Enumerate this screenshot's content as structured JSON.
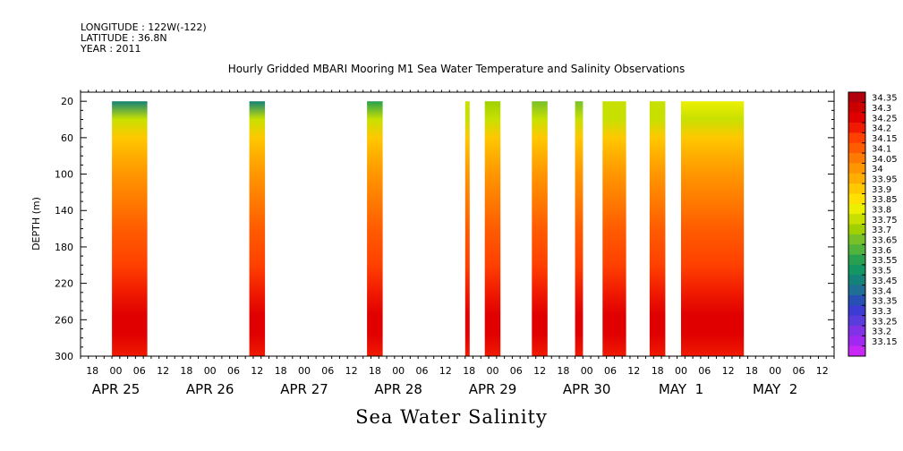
{
  "meta": {
    "longitude": "LONGITUDE : 122W(-122)",
    "latitude": "LATITUDE : 36.8N",
    "year": "YEAR : 2011"
  },
  "chart_data": {
    "type": "heatmap",
    "title": "Hourly Gridded MBARI Mooring M1 Sea Water Temperature and Salinity Observations",
    "subtitle": "Sea Water Salinity",
    "ylabel": "DEPTH (m)",
    "xlabel": "",
    "x_range": [
      "2011-04-24T15:00",
      "2011-05-02T15:00"
    ],
    "ylim": [
      300,
      10
    ],
    "y_axis_inverted": true,
    "y_ticks": [
      20,
      60,
      100,
      140,
      180,
      220,
      260,
      300
    ],
    "x_hour_ticks": [
      "18",
      "00",
      "06",
      "12",
      "18",
      "00",
      "06",
      "12",
      "18",
      "00",
      "06",
      "12",
      "18",
      "00",
      "06",
      "12",
      "18",
      "00",
      "06",
      "12",
      "18",
      "00",
      "06",
      "12",
      "18",
      "00",
      "06",
      "12",
      "18",
      "00",
      "06",
      "12"
    ],
    "x_day_labels": [
      {
        "label": "APR 25",
        "date": "2011-04-25"
      },
      {
        "label": "APR 26",
        "date": "2011-04-26"
      },
      {
        "label": "APR 27",
        "date": "2011-04-27"
      },
      {
        "label": "APR 28",
        "date": "2011-04-28"
      },
      {
        "label": "APR 29",
        "date": "2011-04-29"
      },
      {
        "label": "APR 30",
        "date": "2011-04-30"
      },
      {
        "label": "MAY  1",
        "date": "2011-05-01"
      },
      {
        "label": "MAY  2",
        "date": "2011-05-02"
      }
    ],
    "data_depth_range": [
      20,
      300
    ],
    "data_segments": [
      {
        "start": "2011-04-24T23:00",
        "end": "2011-04-25T08:00",
        "surface_salinity": 33.52
      },
      {
        "start": "2011-04-26T10:00",
        "end": "2011-04-26T14:00",
        "surface_salinity": 33.5
      },
      {
        "start": "2011-04-27T16:00",
        "end": "2011-04-27T20:00",
        "surface_salinity": 33.62
      },
      {
        "start": "2011-04-28T17:00",
        "end": "2011-04-28T18:00",
        "surface_salinity": 33.82
      },
      {
        "start": "2011-04-28T22:00",
        "end": "2011-04-29T02:00",
        "surface_salinity": 33.75
      },
      {
        "start": "2011-04-29T10:00",
        "end": "2011-04-29T14:00",
        "surface_salinity": 33.7
      },
      {
        "start": "2011-04-29T21:00",
        "end": "2011-04-29T23:00",
        "surface_salinity": 33.7
      },
      {
        "start": "2011-04-30T04:00",
        "end": "2011-04-30T10:00",
        "surface_salinity": 33.8
      },
      {
        "start": "2011-04-30T16:00",
        "end": "2011-04-30T20:00",
        "surface_salinity": 33.82
      },
      {
        "start": "2011-05-01T00:00",
        "end": "2011-05-01T16:00",
        "surface_salinity": 33.85
      }
    ],
    "depth_profile": [
      {
        "depth": 20,
        "salinity": 33.55
      },
      {
        "depth": 40,
        "salinity": 33.78
      },
      {
        "depth": 60,
        "salinity": 33.92
      },
      {
        "depth": 80,
        "salinity": 34.0
      },
      {
        "depth": 100,
        "salinity": 34.04
      },
      {
        "depth": 130,
        "salinity": 34.08
      },
      {
        "depth": 160,
        "salinity": 34.12
      },
      {
        "depth": 200,
        "salinity": 34.17
      },
      {
        "depth": 230,
        "salinity": 34.23
      },
      {
        "depth": 255,
        "salinity": 34.3
      },
      {
        "depth": 275,
        "salinity": 34.26
      },
      {
        "depth": 300,
        "salinity": 34.24
      }
    ],
    "colorbar": {
      "labels": [
        "34.35",
        "34.3",
        "34.25",
        "34.2",
        "34.15",
        "34.1",
        "34.05",
        "34",
        "33.95",
        "33.9",
        "33.85",
        "33.8",
        "33.75",
        "33.7",
        "33.65",
        "33.6",
        "33.55",
        "33.5",
        "33.45",
        "33.4",
        "33.35",
        "33.3",
        "33.25",
        "33.2",
        "33.15"
      ],
      "colors": [
        "#b3000d",
        "#cc0000",
        "#e00000",
        "#f01a00",
        "#ff4000",
        "#ff5c00",
        "#ff7a00",
        "#ff9600",
        "#ffae00",
        "#ffc800",
        "#ffe000",
        "#ecf000",
        "#c8e000",
        "#a0d000",
        "#78c028",
        "#50b43c",
        "#28a050",
        "#149664",
        "#148278",
        "#1e6e96",
        "#2850b4",
        "#3c3cd2",
        "#5a3cdc",
        "#8232e6",
        "#a028f0",
        "#c828f5"
      ],
      "scale_min": 33.15,
      "scale_max": 34.35
    }
  }
}
